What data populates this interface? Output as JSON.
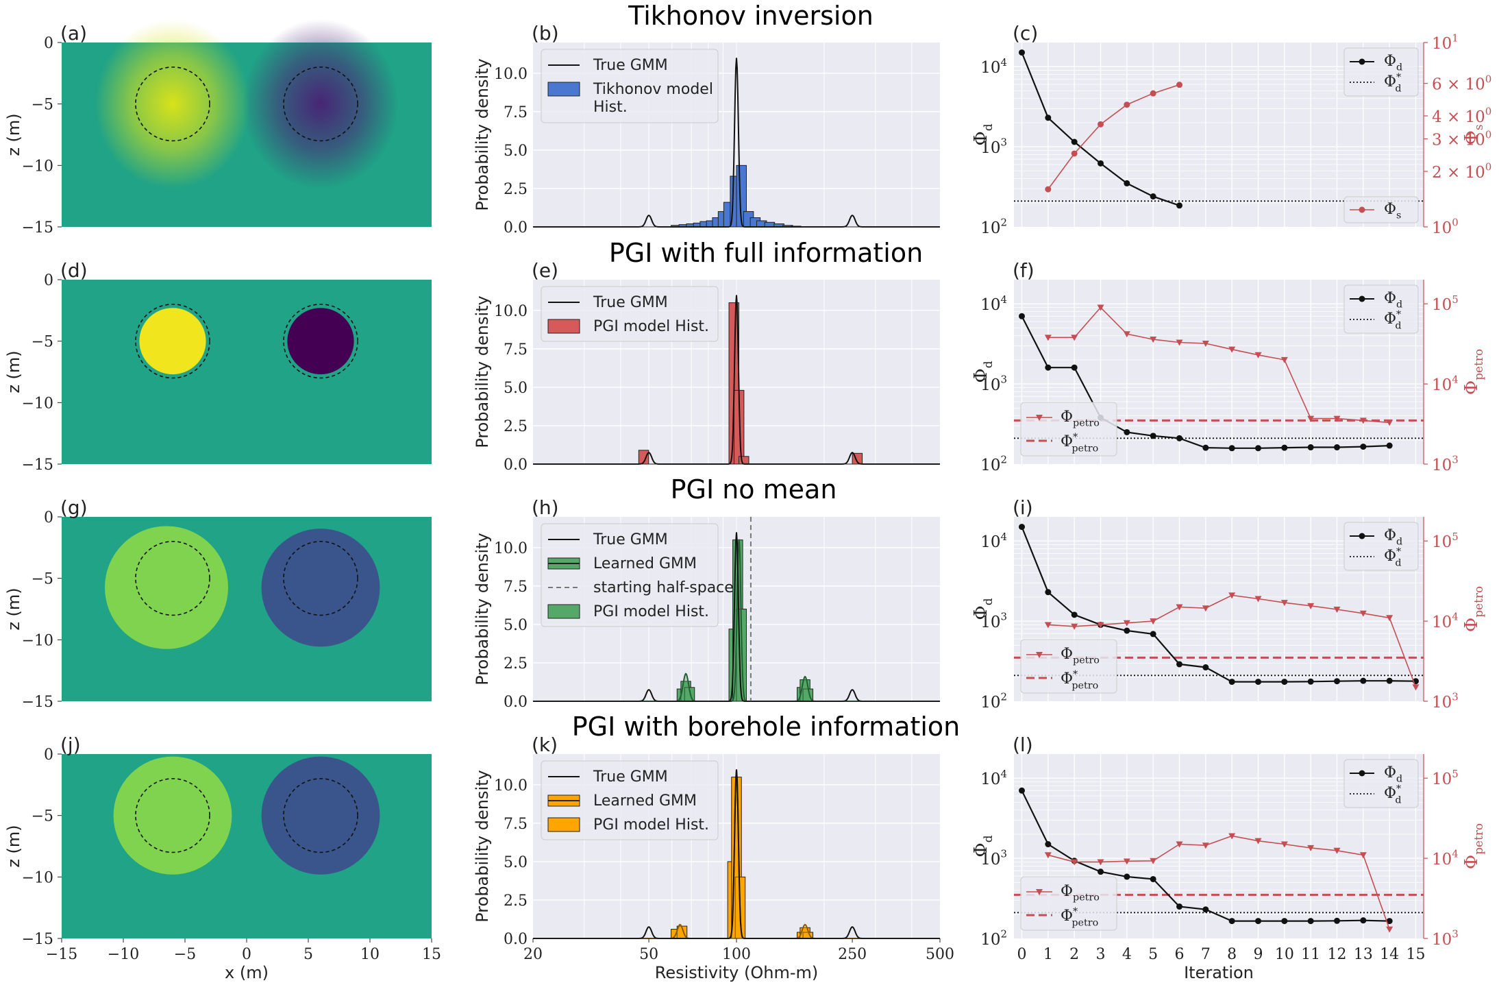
{
  "figure": {
    "row_titles": [
      "Tikhonov inversion",
      "PGI with full information",
      "PGI no mean",
      "PGI with borehole information"
    ],
    "panel_labels": [
      "(a)",
      "(b)",
      "(c)",
      "(d)",
      "(e)",
      "(f)",
      "(g)",
      "(h)",
      "(i)",
      "(j)",
      "(k)",
      "(l)"
    ],
    "colors": {
      "tikhonov": "#4a77d0",
      "pgi_full": "#d65a5a",
      "pgi_nomean": "#55a868",
      "pgi_borehole": "#ffa500",
      "misfit": "#111111",
      "regularization": "#c44e52",
      "axes_bg": "#eaeaf2",
      "model_background": "#20a386"
    }
  },
  "chart_data": [
    {
      "panel": "(a)",
      "type": "heatmap",
      "xlabel": "",
      "ylabel": "z (m)",
      "xlim": [
        -15,
        15
      ],
      "ylim": [
        -15,
        0
      ],
      "yticks": [
        "0",
        "−5",
        "−10",
        "−15"
      ],
      "anomalies": [
        {
          "center": [
            -6,
            -5
          ],
          "radius": 3,
          "peak_color": "#d8e219"
        },
        {
          "center": [
            6,
            -5
          ],
          "radius": 3,
          "peak_color": "#482576"
        }
      ]
    },
    {
      "panel": "(b)",
      "type": "bar",
      "xlabel": "",
      "ylabel": "Probability density",
      "xscale": "log",
      "xlim": [
        20,
        500
      ],
      "ylim": [
        0,
        12
      ],
      "yticks": [
        "0.0",
        "2.5",
        "5.0",
        "7.5",
        "10.0"
      ],
      "legend": [
        "True GMM",
        "Tikhonov model Hist."
      ],
      "true_gmm_peaks": [
        {
          "x": 50,
          "h": 0.75
        },
        {
          "x": 100,
          "h": 11
        },
        {
          "x": 250,
          "h": 0.75
        }
      ],
      "hist_x": [
        62,
        66,
        70,
        74,
        78,
        82,
        86,
        90,
        94,
        99,
        104,
        110,
        116,
        122,
        130,
        140,
        150,
        160
      ],
      "hist_y": [
        0.1,
        0.15,
        0.2,
        0.25,
        0.35,
        0.4,
        0.6,
        1.0,
        1.6,
        3.3,
        4.0,
        1.0,
        0.6,
        0.4,
        0.3,
        0.2,
        0.1,
        0.05
      ]
    },
    {
      "panel": "(c)",
      "type": "line",
      "xlabel": "",
      "ylabel": "Φ_d",
      "y2label": "Φ_s",
      "xlim": [
        -0.3,
        15.3
      ],
      "ylim": [
        100,
        20000
      ],
      "y2lim": [
        1,
        10
      ],
      "yticks": [
        "10^2",
        "10^3",
        "10^4"
      ],
      "y2ticks": [
        "10^0",
        "2 × 10^0",
        "3 × 10^0",
        "4 × 10^0",
        "6 × 10^0",
        "10^1"
      ],
      "legend": [
        "Φ_d",
        "Φ*_d",
        "Φ_s"
      ],
      "series": [
        {
          "name": "Φ_d",
          "axis": "left",
          "x": [
            0,
            1,
            2,
            3,
            4,
            5,
            6
          ],
          "values": [
            15000,
            2300,
            1150,
            620,
            350,
            240,
            185
          ]
        },
        {
          "name": "Φ_s",
          "axis": "right",
          "x": [
            1,
            2,
            3,
            4,
            5,
            6
          ],
          "values": [
            1.6,
            2.5,
            3.6,
            4.6,
            5.3,
            5.9
          ]
        }
      ],
      "targets": [
        {
          "name": "Φ*_d",
          "axis": "left",
          "value": 210
        }
      ]
    },
    {
      "panel": "(d)",
      "type": "heatmap",
      "xlabel": "",
      "ylabel": "z (m)",
      "xlim": [
        -15,
        15
      ],
      "ylim": [
        -15,
        0
      ],
      "yticks": [
        "0",
        "−5",
        "−10",
        "−15"
      ],
      "anomalies": [
        {
          "center": [
            -6,
            -5
          ],
          "radius": 2.7,
          "peak_color": "#f1e51d"
        },
        {
          "center": [
            6,
            -5
          ],
          "radius": 2.7,
          "peak_color": "#440154"
        }
      ]
    },
    {
      "panel": "(e)",
      "type": "bar",
      "xlabel": "",
      "ylabel": "Probability density",
      "xscale": "log",
      "xlim": [
        20,
        500
      ],
      "ylim": [
        0,
        12
      ],
      "yticks": [
        "0.0",
        "2.5",
        "5.0",
        "7.5",
        "10.0"
      ],
      "legend": [
        "True GMM",
        "PGI model Hist."
      ],
      "true_gmm_peaks": [
        {
          "x": 50,
          "h": 0.75
        },
        {
          "x": 100,
          "h": 11
        },
        {
          "x": 250,
          "h": 0.75
        }
      ],
      "hist_x": [
        48,
        98,
        102,
        106,
        260
      ],
      "hist_y": [
        0.9,
        10.5,
        4.8,
        0.5,
        0.7
      ]
    },
    {
      "panel": "(f)",
      "type": "line",
      "xlabel": "",
      "ylabel": "Φ_d",
      "y2label": "Φ_petro",
      "xlim": [
        -0.3,
        15.3
      ],
      "ylim": [
        100,
        20000
      ],
      "y2lim": [
        1000,
        200000
      ],
      "yticks": [
        "10^2",
        "10^3",
        "10^4"
      ],
      "y2ticks": [
        "10^3",
        "10^4",
        "10^5"
      ],
      "legend": [
        "Φ_d",
        "Φ*_d",
        "Φ_petro",
        "Φ*_petro"
      ],
      "series": [
        {
          "name": "Φ_d",
          "axis": "left",
          "x": [
            0,
            1,
            2,
            3,
            4,
            5,
            6,
            7,
            8,
            9,
            10,
            11,
            12,
            13,
            14
          ],
          "values": [
            7000,
            1600,
            1600,
            380,
            250,
            225,
            210,
            160,
            158,
            158,
            160,
            162,
            162,
            165,
            170
          ]
        },
        {
          "name": "Φ_petro",
          "axis": "right",
          "x": [
            1,
            2,
            3,
            4,
            5,
            6,
            7,
            8,
            9,
            10,
            11,
            12,
            13,
            14
          ],
          "values": [
            38000,
            38000,
            90000,
            42000,
            36000,
            33000,
            32000,
            27000,
            23000,
            20000,
            3700,
            3700,
            3500,
            3300
          ]
        }
      ],
      "targets": [
        {
          "name": "Φ*_d",
          "axis": "left",
          "value": 210
        },
        {
          "name": "Φ*_petro",
          "axis": "right",
          "value": 3500
        }
      ]
    },
    {
      "panel": "(g)",
      "type": "heatmap",
      "xlabel": "",
      "ylabel": "z (m)",
      "xlim": [
        -15,
        15
      ],
      "ylim": [
        -15,
        0
      ],
      "yticks": [
        "0",
        "−5",
        "−10",
        "−15"
      ],
      "anomalies": [
        {
          "center": [
            -6.5,
            -6
          ],
          "radius": 5,
          "peak_color": "#7fd34e"
        },
        {
          "center": [
            6,
            -6
          ],
          "radius": 4.8,
          "peak_color": "#3a548c"
        }
      ]
    },
    {
      "panel": "(h)",
      "type": "bar",
      "xlabel": "",
      "ylabel": "Probability density",
      "xscale": "log",
      "xlim": [
        20,
        500
      ],
      "ylim": [
        0,
        12
      ],
      "yticks": [
        "0.0",
        "2.5",
        "5.0",
        "7.5",
        "10.0"
      ],
      "legend": [
        "True GMM",
        "Learned GMM",
        "starting half-space",
        "PGI model Hist."
      ],
      "true_gmm_peaks": [
        {
          "x": 50,
          "h": 0.75
        },
        {
          "x": 100,
          "h": 11
        },
        {
          "x": 250,
          "h": 0.75
        }
      ],
      "learned_gmm_peaks": [
        {
          "x": 67,
          "h": 1.8
        },
        {
          "x": 102,
          "h": 10.6
        },
        {
          "x": 172,
          "h": 1.6
        }
      ],
      "starting_half_space": 112,
      "hist_x": [
        65,
        67,
        69,
        98,
        101,
        104,
        168,
        172,
        176
      ],
      "hist_y": [
        0.8,
        1.3,
        0.9,
        4.7,
        10.5,
        6.0,
        0.9,
        1.4,
        0.8
      ]
    },
    {
      "panel": "(i)",
      "type": "line",
      "xlabel": "",
      "ylabel": "Φ_d",
      "y2label": "Φ_petro",
      "xlim": [
        -0.3,
        15.3
      ],
      "ylim": [
        100,
        20000
      ],
      "y2lim": [
        1000,
        200000
      ],
      "yticks": [
        "10^2",
        "10^3",
        "10^4"
      ],
      "y2ticks": [
        "10^3",
        "10^4",
        "10^5"
      ],
      "legend": [
        "Φ_d",
        "Φ*_d",
        "Φ_petro",
        "Φ*_petro"
      ],
      "series": [
        {
          "name": "Φ_d",
          "axis": "left",
          "x": [
            0,
            1,
            2,
            3,
            4,
            5,
            6,
            7,
            8,
            9,
            10,
            11,
            12,
            13,
            14,
            15
          ],
          "values": [
            15000,
            2300,
            1200,
            900,
            760,
            690,
            290,
            265,
            175,
            175,
            175,
            176,
            178,
            180,
            180,
            178
          ]
        },
        {
          "name": "Φ_petro",
          "axis": "right",
          "x": [
            1,
            2,
            3,
            4,
            5,
            6,
            7,
            8,
            9,
            10,
            11,
            12,
            13,
            14,
            15
          ],
          "values": [
            9000,
            8600,
            9000,
            9500,
            10000,
            15000,
            14500,
            21000,
            19000,
            17000,
            15500,
            14000,
            12500,
            11000,
            1500
          ]
        }
      ],
      "targets": [
        {
          "name": "Φ*_d",
          "axis": "left",
          "value": 210
        },
        {
          "name": "Φ*_petro",
          "axis": "right",
          "value": 3500
        }
      ]
    },
    {
      "panel": "(j)",
      "type": "heatmap",
      "xlabel": "x (m)",
      "ylabel": "z (m)",
      "xlim": [
        -15,
        15
      ],
      "ylim": [
        -15,
        0
      ],
      "xticks": [
        "−15",
        "−10",
        "−5",
        "0",
        "5",
        "10",
        "15"
      ],
      "yticks": [
        "0",
        "−5",
        "−10",
        "−15"
      ],
      "anomalies": [
        {
          "center": [
            -6,
            -5
          ],
          "radius": 4.8,
          "peak_color": "#7fd34e"
        },
        {
          "center": [
            6,
            -5
          ],
          "radius": 4.8,
          "peak_color": "#3a548c"
        }
      ]
    },
    {
      "panel": "(k)",
      "type": "bar",
      "xlabel": "Resistivity (Ohm-m)",
      "ylabel": "Probability density",
      "xscale": "log",
      "xlim": [
        20,
        500
      ],
      "ylim": [
        0,
        12
      ],
      "xticks": [
        "20",
        "50",
        "100",
        "250",
        "500"
      ],
      "yticks": [
        "0.0",
        "2.5",
        "5.0",
        "7.5",
        "10.0"
      ],
      "legend": [
        "True GMM",
        "Learned GMM",
        "PGI model Hist."
      ],
      "true_gmm_peaks": [
        {
          "x": 50,
          "h": 0.75
        },
        {
          "x": 100,
          "h": 11
        },
        {
          "x": 250,
          "h": 0.75
        }
      ],
      "learned_gmm_peaks": [
        {
          "x": 64,
          "h": 0.9
        },
        {
          "x": 100,
          "h": 11
        },
        {
          "x": 172,
          "h": 0.9
        }
      ],
      "hist_x": [
        62,
        65,
        97,
        100,
        103,
        168,
        172,
        176
      ],
      "hist_y": [
        0.6,
        0.8,
        5.0,
        10.5,
        4.0,
        0.4,
        0.7,
        0.4
      ]
    },
    {
      "panel": "(l)",
      "type": "line",
      "xlabel": "Iteration",
      "ylabel": "Φ_d",
      "y2label": "Φ_petro",
      "xlim": [
        -0.3,
        15.3
      ],
      "ylim": [
        100,
        20000
      ],
      "y2lim": [
        1000,
        200000
      ],
      "xticks": [
        "0",
        "1",
        "2",
        "3",
        "4",
        "5",
        "6",
        "7",
        "8",
        "9",
        "10",
        "11",
        "12",
        "13",
        "14",
        "15"
      ],
      "yticks": [
        "10^2",
        "10^3",
        "10^4"
      ],
      "y2ticks": [
        "10^3",
        "10^4",
        "10^5"
      ],
      "legend": [
        "Φ_d",
        "Φ*_d",
        "Φ_petro",
        "Φ*_petro"
      ],
      "series": [
        {
          "name": "Φ_d",
          "axis": "left",
          "x": [
            0,
            1,
            2,
            3,
            4,
            5,
            6,
            7,
            8,
            9,
            10,
            11,
            12,
            13,
            14
          ],
          "values": [
            7000,
            1500,
            930,
            680,
            590,
            550,
            250,
            230,
            165,
            165,
            165,
            165,
            166,
            168,
            165
          ]
        },
        {
          "name": "Φ_petro",
          "axis": "right",
          "x": [
            1,
            2,
            3,
            4,
            5,
            6,
            7,
            8,
            9,
            10,
            11,
            12,
            13,
            14
          ],
          "values": [
            11000,
            9000,
            9000,
            9200,
            9300,
            15000,
            14500,
            19000,
            16500,
            15000,
            13500,
            12500,
            11000,
            1300
          ]
        }
      ],
      "targets": [
        {
          "name": "Φ*_d",
          "axis": "left",
          "value": 210
        },
        {
          "name": "Φ*_petro",
          "axis": "right",
          "value": 3500
        }
      ]
    }
  ]
}
